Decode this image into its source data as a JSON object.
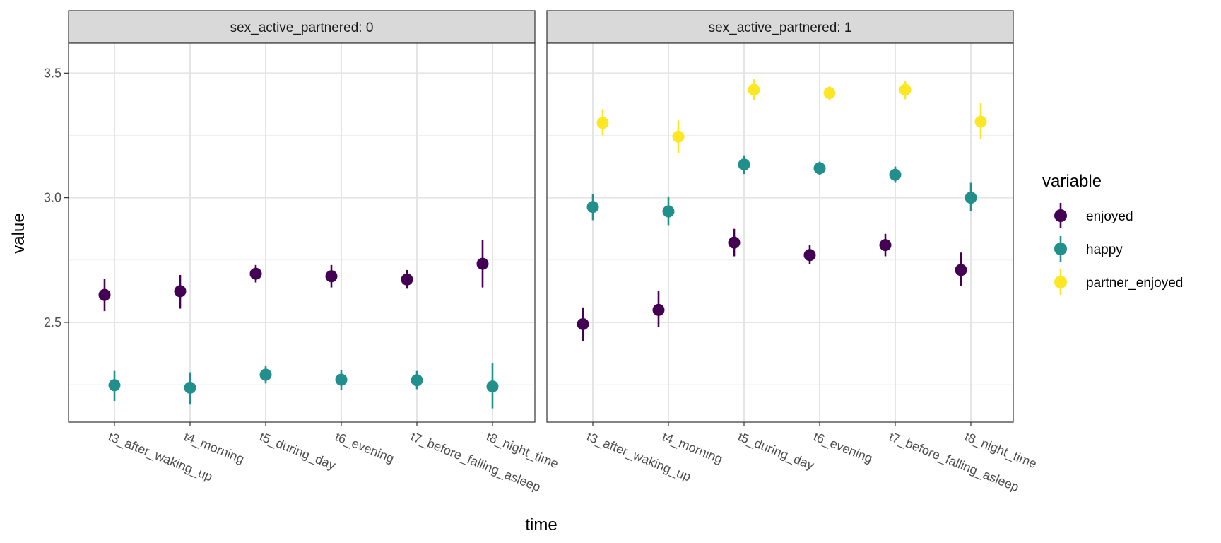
{
  "chart_data": {
    "type": "scatter",
    "xlabel": "time",
    "ylabel": "value",
    "facet_title_prefix": "sex_active_partnered",
    "categories": [
      "t3_after_waking_up",
      "t4_morning",
      "t5_during_day",
      "t6_evening",
      "t7_before_falling_asleep",
      "t8_night_time"
    ],
    "y_ticks": [
      2.5,
      3.0,
      3.5
    ],
    "y_tick_labels": [
      "2.5",
      "3.0",
      "3.5"
    ],
    "ylim": [
      2.1,
      3.62
    ],
    "grid": true,
    "legend": {
      "title": "variable",
      "position": "right",
      "items": [
        "enjoyed",
        "happy",
        "partner_enjoyed"
      ]
    },
    "colors": {
      "enjoyed": "#440154",
      "happy": "#21908C",
      "partner_enjoyed": "#FDE725"
    },
    "facets": [
      {
        "label": "sex_active_partnered: 0",
        "series": [
          {
            "name": "enjoyed",
            "values": [
              2.61,
              2.625,
              2.695,
              2.685,
              2.672,
              2.735
            ],
            "lower": [
              2.545,
              2.555,
              2.66,
              2.64,
              2.635,
              2.64
            ],
            "upper": [
              2.675,
              2.69,
              2.73,
              2.73,
              2.71,
              2.83
            ]
          },
          {
            "name": "happy",
            "values": [
              2.248,
              2.238,
              2.29,
              2.27,
              2.268,
              2.243
            ],
            "lower": [
              2.185,
              2.17,
              2.255,
              2.23,
              2.232,
              2.155
            ],
            "upper": [
              2.305,
              2.3,
              2.325,
              2.31,
              2.305,
              2.335
            ]
          }
        ]
      },
      {
        "label": "sex_active_partnered: 1",
        "series": [
          {
            "name": "enjoyed",
            "values": [
              2.493,
              2.55,
              2.82,
              2.77,
              2.81,
              2.71
            ],
            "lower": [
              2.425,
              2.48,
              2.765,
              2.735,
              2.765,
              2.645
            ],
            "upper": [
              2.56,
              2.625,
              2.875,
              2.81,
              2.855,
              2.78
            ]
          },
          {
            "name": "happy",
            "values": [
              2.963,
              2.945,
              3.133,
              3.118,
              3.092,
              3.0
            ],
            "lower": [
              2.91,
              2.89,
              3.095,
              3.09,
              3.06,
              2.945
            ],
            "upper": [
              3.015,
              3.005,
              3.17,
              3.145,
              3.125,
              3.06
            ]
          },
          {
            "name": "partner_enjoyed",
            "values": [
              3.3,
              3.245,
              3.433,
              3.42,
              3.433,
              3.305
            ],
            "lower": [
              3.25,
              3.18,
              3.39,
              3.39,
              3.395,
              3.235
            ],
            "upper": [
              3.355,
              3.31,
              3.475,
              3.45,
              3.47,
              3.38
            ]
          }
        ]
      }
    ]
  }
}
